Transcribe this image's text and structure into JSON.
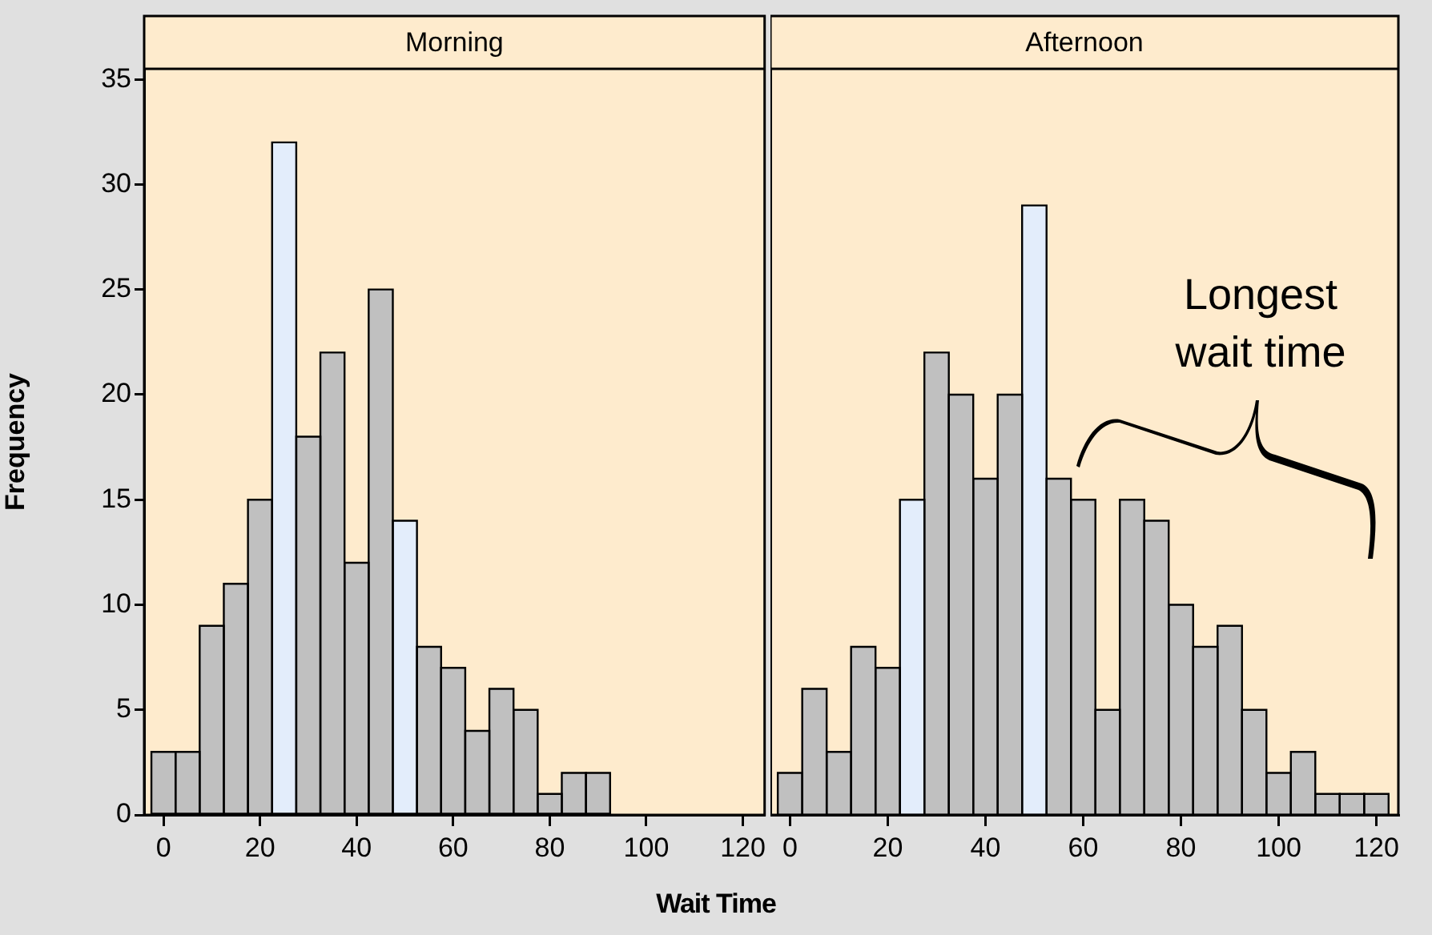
{
  "chart_data": [
    {
      "type": "histogram",
      "title": "Morning",
      "ylabel": "Frequency",
      "xlabel": "Wait Time",
      "bins": [
        -2.5,
        2.5,
        7.5,
        12.5,
        17.5,
        22.5,
        27.5,
        32.5,
        37.5,
        42.5,
        47.5,
        52.5,
        57.5,
        62.5,
        67.5,
        72.5,
        77.5,
        82.5,
        87.5,
        92.5,
        97.5,
        102.5,
        107.5,
        112.5,
        117.5,
        122.5
      ],
      "values": [
        3,
        3,
        9,
        11,
        15,
        32,
        18,
        22,
        12,
        25,
        14,
        8,
        7,
        4,
        6,
        5,
        1,
        2,
        2,
        0,
        0,
        0,
        0,
        0,
        0
      ],
      "colors": [
        "#c0c0c0",
        "#c0c0c0",
        "#c0c0c0",
        "#c0c0c0",
        "#c0c0c0",
        "#e3edfb",
        "#c0c0c0",
        "#c0c0c0",
        "#c0c0c0",
        "#c0c0c0",
        "#e3edfb",
        "#c0c0c0",
        "#c0c0c0",
        "#c0c0c0",
        "#c0c0c0",
        "#c0c0c0",
        "#c0c0c0",
        "#c0c0c0",
        "#c0c0c0",
        "#c0c0c0",
        "#c0c0c0",
        "#c0c0c0",
        "#c0c0c0",
        "#c0c0c0",
        "#c0c0c0"
      ],
      "xlim": [
        -4,
        124.5
      ],
      "xticks": [
        0,
        20,
        40,
        60,
        80,
        100,
        120
      ],
      "ylim": [
        0,
        35.5
      ],
      "yticks": [
        0,
        5,
        10,
        15,
        20,
        25,
        30,
        35
      ]
    },
    {
      "type": "histogram",
      "title": "Afternoon",
      "annotations": [
        "Longest wait time"
      ],
      "tick_labels": "x",
      "bins": [
        -2.5,
        2.5,
        7.5,
        12.5,
        17.5,
        22.5,
        27.5,
        32.5,
        37.5,
        42.5,
        47.5,
        52.5,
        57.5,
        62.5,
        67.5,
        72.5,
        77.5,
        82.5,
        87.5,
        92.5,
        97.5,
        102.5,
        107.5,
        112.5,
        117.5,
        122.5
      ],
      "values": [
        2,
        6,
        3,
        8,
        7,
        15,
        22,
        20,
        16,
        20,
        29,
        16,
        15,
        5,
        15,
        14,
        10,
        8,
        9,
        5,
        2,
        3,
        1,
        1,
        1
      ],
      "colors": [
        "#c0c0c0",
        "#c0c0c0",
        "#c0c0c0",
        "#c0c0c0",
        "#c0c0c0",
        "#e3edfb",
        "#c0c0c0",
        "#c0c0c0",
        "#c0c0c0",
        "#c0c0c0",
        "#e3edfb",
        "#c0c0c0",
        "#c0c0c0",
        "#c0c0c0",
        "#c0c0c0",
        "#c0c0c0",
        "#c0c0c0",
        "#c0c0c0",
        "#c0c0c0",
        "#c0c0c0",
        "#c0c0c0",
        "#c0c0c0",
        "#c0c0c0",
        "#c0c0c0",
        "#c0c0c0"
      ],
      "xlim": [
        -4,
        124.5
      ],
      "xticks": [
        0,
        20,
        40,
        60,
        80,
        100,
        120
      ],
      "ylim": [
        0,
        35.5
      ],
      "yticks": [
        0,
        5,
        10,
        15,
        20,
        25,
        30,
        35
      ]
    }
  ]
}
